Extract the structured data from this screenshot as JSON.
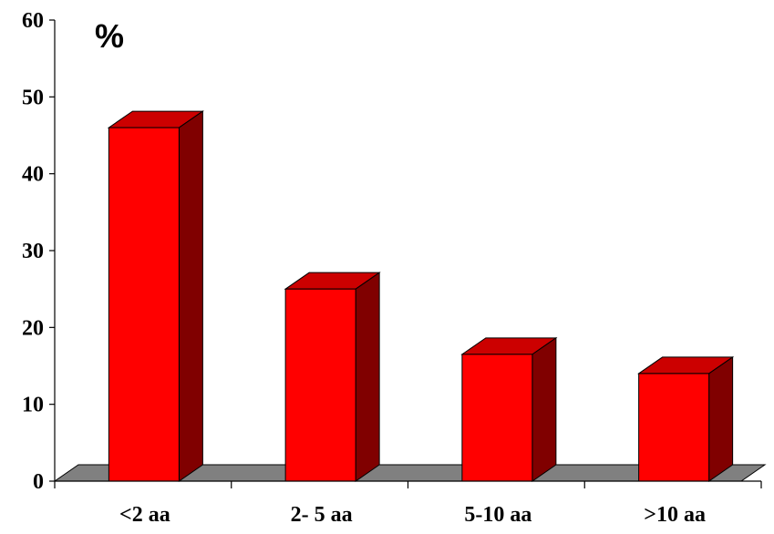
{
  "chart_data": {
    "type": "bar",
    "style": "3d-column",
    "title": "",
    "xlabel": "",
    "ylabel": "%",
    "categories": [
      "<2 aa",
      "2- 5 aa",
      "5-10 aa",
      ">10 aa"
    ],
    "values": [
      46,
      25,
      16.5,
      14
    ],
    "ylim": [
      0,
      60
    ],
    "yticks": [
      "0",
      "10",
      "20",
      "30",
      "40",
      "50",
      "60"
    ],
    "grid": false,
    "legend": "none",
    "colors": {
      "bar_front": "#ff0000",
      "bar_top": "#cc0000",
      "bar_side": "#800000",
      "floor": "#808080"
    }
  }
}
